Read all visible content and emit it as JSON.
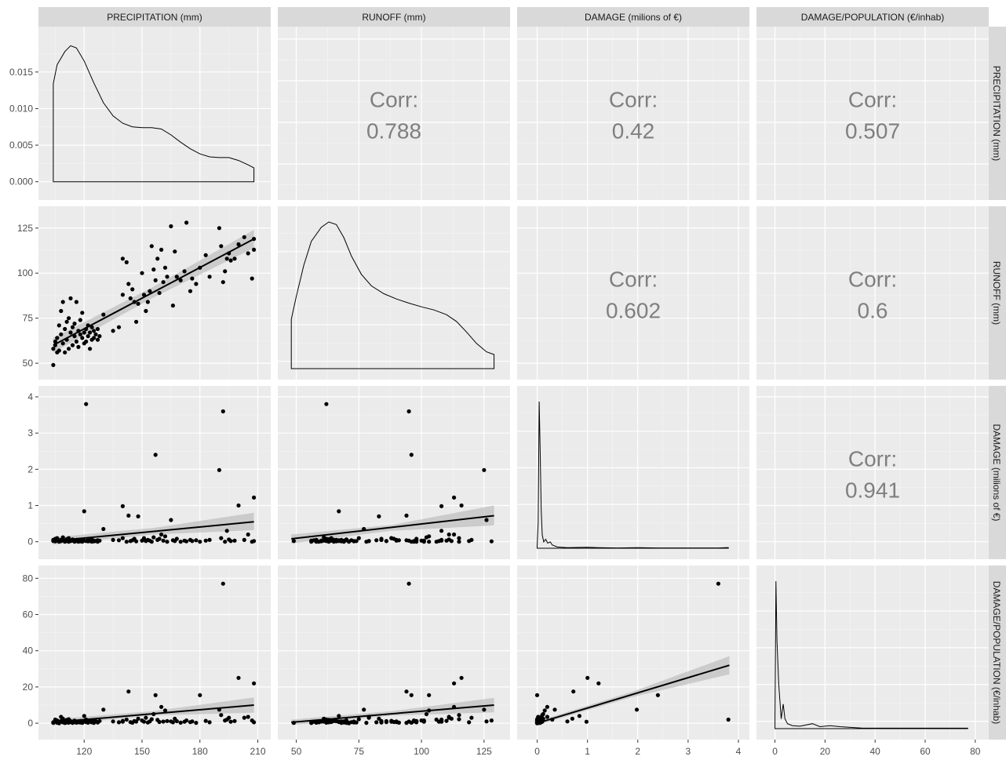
{
  "chart_data": {
    "type": "scatter",
    "title": "",
    "variables": [
      {
        "key": "precip",
        "label": "PRECIPITATION (mm)",
        "range": [
          102,
          211
        ],
        "ticks": [
          120,
          150,
          180,
          210
        ]
      },
      {
        "key": "runoff",
        "label": "RUNOFF (mm)",
        "range": [
          47,
          131
        ],
        "ticks": [
          50,
          75,
          100,
          125
        ]
      },
      {
        "key": "damage",
        "label": "DAMAGE (milions of €)",
        "range": [
          -0.18,
          4.0
        ],
        "ticks": [
          0,
          1,
          2,
          3,
          4
        ]
      },
      {
        "key": "dpop",
        "label": "DAMAGE/POPULATION (€/inhab)",
        "range": [
          -3,
          81
        ],
        "ticks": [
          0,
          20,
          40,
          60,
          80
        ]
      }
    ],
    "density_y": {
      "range": [
        -0.001,
        0.0197
      ],
      "ticks": [
        0.0,
        0.005,
        0.01,
        0.015
      ],
      "tick_labels": [
        "0.000",
        "0.005",
        "0.010",
        "0.015"
      ]
    },
    "correlations": [
      {
        "row": 0,
        "col": 1,
        "label": "Corr:",
        "value": "0.788"
      },
      {
        "row": 0,
        "col": 2,
        "label": "Corr:",
        "value": "0.42"
      },
      {
        "row": 0,
        "col": 3,
        "label": "Corr:",
        "value": "0.507"
      },
      {
        "row": 1,
        "col": 2,
        "label": "Corr:",
        "value": "0.602"
      },
      {
        "row": 1,
        "col": 3,
        "label": "Corr:",
        "value": "0.6"
      },
      {
        "row": 2,
        "col": 3,
        "label": "Corr:",
        "value": "0.941"
      }
    ],
    "densities": {
      "precip": [
        [
          104,
          0.0134
        ],
        [
          106,
          0.016
        ],
        [
          110,
          0.0178
        ],
        [
          113,
          0.0186
        ],
        [
          116,
          0.0183
        ],
        [
          120,
          0.0165
        ],
        [
          125,
          0.0135
        ],
        [
          130,
          0.0108
        ],
        [
          135,
          0.009
        ],
        [
          140,
          0.008
        ],
        [
          145,
          0.0075
        ],
        [
          150,
          0.0074
        ],
        [
          155,
          0.0074
        ],
        [
          160,
          0.0072
        ],
        [
          165,
          0.0064
        ],
        [
          170,
          0.0054
        ],
        [
          175,
          0.0045
        ],
        [
          180,
          0.0038
        ],
        [
          185,
          0.0034
        ],
        [
          190,
          0.0033
        ],
        [
          195,
          0.0033
        ],
        [
          200,
          0.0029
        ],
        [
          205,
          0.0023
        ],
        [
          208,
          0.0019
        ]
      ],
      "runoff": [
        [
          48,
          0.0094
        ],
        [
          50,
          0.0138
        ],
        [
          53,
          0.0197
        ],
        [
          56,
          0.0243
        ],
        [
          60,
          0.027
        ],
        [
          63,
          0.028
        ],
        [
          66,
          0.0275
        ],
        [
          69,
          0.025
        ],
        [
          72,
          0.0215
        ],
        [
          76,
          0.018
        ],
        [
          80,
          0.0158
        ],
        [
          85,
          0.0143
        ],
        [
          90,
          0.0133
        ],
        [
          95,
          0.0125
        ],
        [
          100,
          0.0118
        ],
        [
          105,
          0.0112
        ],
        [
          110,
          0.0103
        ],
        [
          114,
          0.009
        ],
        [
          118,
          0.007
        ],
        [
          122,
          0.0048
        ],
        [
          126,
          0.0032
        ],
        [
          129,
          0.0027
        ]
      ],
      "damage": [
        [
          0,
          0.05
        ],
        [
          0.02,
          0.8
        ],
        [
          0.04,
          4.6
        ],
        [
          0.06,
          3.0
        ],
        [
          0.08,
          1.2
        ],
        [
          0.1,
          0.42
        ],
        [
          0.13,
          0.2
        ],
        [
          0.17,
          0.28
        ],
        [
          0.21,
          0.16
        ],
        [
          0.26,
          0.2
        ],
        [
          0.3,
          0.1
        ],
        [
          0.4,
          0.04
        ],
        [
          0.6,
          0.02
        ],
        [
          1.0,
          0.03
        ],
        [
          1.2,
          0.02
        ],
        [
          1.6,
          0.01
        ],
        [
          2.0,
          0.02
        ],
        [
          2.4,
          0.01
        ],
        [
          3.0,
          0.01
        ],
        [
          3.6,
          0.01
        ],
        [
          3.8,
          0.02
        ]
      ],
      "dpop": [
        [
          0,
          0.02
        ],
        [
          0.4,
          0.3
        ],
        [
          0.8,
          0.18
        ],
        [
          1.5,
          0.09
        ],
        [
          2.5,
          0.02
        ],
        [
          3.3,
          0.05
        ],
        [
          4.0,
          0.02
        ],
        [
          5,
          0.01
        ],
        [
          7,
          0.006
        ],
        [
          10,
          0.005
        ],
        [
          15,
          0.01
        ],
        [
          18,
          0.004
        ],
        [
          22,
          0.006
        ],
        [
          26,
          0.004
        ],
        [
          35,
          0.001
        ],
        [
          50,
          0.001
        ],
        [
          77,
          0.001
        ]
      ]
    },
    "regressions": [
      {
        "row": 1,
        "col": 0,
        "line": [
          [
            104,
            60
          ],
          [
            208,
            119
          ]
        ],
        "band": [
          [
            104,
            56,
            64
          ],
          [
            156,
            86.5,
            92.5
          ],
          [
            208,
            114,
            124
          ]
        ]
      },
      {
        "row": 2,
        "col": 0,
        "line": [
          [
            104,
            0.02
          ],
          [
            208,
            0.55
          ]
        ],
        "band": [
          [
            104,
            -0.08,
            0.12
          ],
          [
            156,
            0.2,
            0.38
          ],
          [
            208,
            0.32,
            0.8
          ]
        ]
      },
      {
        "row": 2,
        "col": 1,
        "line": [
          [
            48,
            0.08
          ],
          [
            129,
            0.72
          ]
        ],
        "band": [
          [
            48,
            -0.05,
            0.2
          ],
          [
            88,
            0.3,
            0.46
          ],
          [
            129,
            0.45,
            1.0
          ]
        ]
      },
      {
        "row": 3,
        "col": 0,
        "line": [
          [
            104,
            0.5
          ],
          [
            208,
            10
          ]
        ],
        "band": [
          [
            104,
            -1.2,
            2.2
          ],
          [
            156,
            4.3,
            6.7
          ],
          [
            208,
            5.8,
            14.2
          ]
        ]
      },
      {
        "row": 3,
        "col": 1,
        "line": [
          [
            48,
            0.5
          ],
          [
            129,
            10
          ]
        ],
        "band": [
          [
            48,
            -1.0,
            2.0
          ],
          [
            88,
            4.2,
            6.6
          ],
          [
            129,
            6.0,
            14.0
          ]
        ]
      },
      {
        "row": 3,
        "col": 2,
        "line": [
          [
            0.0,
            0.0
          ],
          [
            3.82,
            32
          ]
        ],
        "band": [
          [
            0.0,
            -1.0,
            1.0
          ],
          [
            1.9,
            14.5,
            17.5
          ],
          [
            3.82,
            27,
            37
          ]
        ]
      }
    ],
    "points": [
      [
        104,
        49,
        0.02,
        0.2
      ],
      [
        104,
        58,
        0.05,
        0.5
      ],
      [
        105,
        60,
        0.01,
        1.0
      ],
      [
        105,
        62,
        0.08,
        2.0
      ],
      [
        106,
        56,
        0.03,
        0.3
      ],
      [
        106,
        64,
        0.1,
        1.5
      ],
      [
        107,
        71,
        0.0,
        0.0
      ],
      [
        107,
        57,
        0.04,
        0.8
      ],
      [
        108,
        79,
        0.02,
        3.5
      ],
      [
        108,
        66,
        0.05,
        1.2
      ],
      [
        109,
        84,
        0.06,
        0.5
      ],
      [
        109,
        61,
        0.12,
        2.5
      ],
      [
        110,
        56,
        0.0,
        0.1
      ],
      [
        110,
        69,
        0.03,
        1.0
      ],
      [
        111,
        73,
        0.02,
        0.4
      ],
      [
        111,
        63,
        0.07,
        1.8
      ],
      [
        112,
        75,
        0.1,
        2.2
      ],
      [
        112,
        58,
        0.0,
        0.3
      ],
      [
        113,
        67,
        0.04,
        0.7
      ],
      [
        113,
        86,
        0.02,
        1.1
      ],
      [
        114,
        60,
        0.03,
        0.9
      ],
      [
        114,
        70,
        0.06,
        0.2
      ],
      [
        115,
        65,
        0.0,
        1.4
      ],
      [
        115,
        72,
        0.04,
        0.6
      ],
      [
        116,
        62,
        0.02,
        0.3
      ],
      [
        116,
        84,
        0.05,
        0.8
      ],
      [
        117,
        68,
        0.03,
        1.0
      ],
      [
        117,
        59,
        0.0,
        0.5
      ],
      [
        118,
        66,
        0.01,
        1.2
      ],
      [
        118,
        74,
        0.02,
        0.4
      ],
      [
        119,
        64,
        0.04,
        0.7
      ],
      [
        119,
        78,
        0.0,
        0.2
      ],
      [
        120,
        67,
        0.84,
        4.0
      ],
      [
        120,
        61,
        0.03,
        0.9
      ],
      [
        121,
        69,
        0.02,
        0.6
      ],
      [
        121,
        62,
        3.8,
        2.0
      ],
      [
        122,
        65,
        0.05,
        1.3
      ],
      [
        122,
        71,
        0.01,
        0.3
      ],
      [
        123,
        58,
        0.04,
        0.8
      ],
      [
        123,
        67,
        0.02,
        1.0
      ],
      [
        124,
        63,
        0.0,
        0.5
      ],
      [
        124,
        70,
        0.06,
        1.6
      ],
      [
        125,
        68,
        0.01,
        0.2
      ],
      [
        125,
        64,
        0.03,
        0.9
      ],
      [
        126,
        66,
        0.02,
        1.1
      ],
      [
        127,
        63,
        0.04,
        0.7
      ],
      [
        127,
        69,
        0.0,
        0.4
      ],
      [
        128,
        65,
        0.03,
        1.2
      ],
      [
        130,
        77,
        0.35,
        7.5
      ],
      [
        135,
        68,
        0.05,
        1.0
      ],
      [
        138,
        70,
        0.04,
        0.5
      ],
      [
        140,
        108,
        0.98,
        0.8
      ],
      [
        140,
        88,
        0.1,
        1.3
      ],
      [
        142,
        106,
        0.0,
        2.0
      ],
      [
        143,
        94,
        0.72,
        17.5
      ],
      [
        144,
        86,
        0.02,
        0.6
      ],
      [
        145,
        91,
        0.04,
        0.3
      ],
      [
        146,
        84,
        0.08,
        1.2
      ],
      [
        147,
        73,
        0.01,
        0.9
      ],
      [
        148,
        83,
        0.7,
        2.5
      ],
      [
        150,
        100,
        0.03,
        1.5
      ],
      [
        151,
        88,
        0.1,
        0.8
      ],
      [
        152,
        79,
        0.02,
        3.0
      ],
      [
        153,
        84,
        0.05,
        0.4
      ],
      [
        154,
        90,
        0.03,
        1.0
      ],
      [
        155,
        115,
        0.0,
        2.2
      ],
      [
        156,
        102,
        0.12,
        5.0
      ],
      [
        157,
        96,
        2.4,
        15.5
      ],
      [
        158,
        108,
        0.05,
        1.8
      ],
      [
        159,
        89,
        0.08,
        0.7
      ],
      [
        160,
        113,
        0.2,
        9.0
      ],
      [
        161,
        95,
        0.03,
        0.9
      ],
      [
        162,
        103,
        0.15,
        7.0
      ],
      [
        163,
        98,
        0.0,
        1.2
      ],
      [
        165,
        126,
        0.6,
        1.0
      ],
      [
        166,
        82,
        0.04,
        0.5
      ],
      [
        167,
        112,
        0.02,
        2.5
      ],
      [
        168,
        98,
        0.08,
        1.1
      ],
      [
        170,
        96,
        0.0,
        0.3
      ],
      [
        172,
        101,
        0.03,
        0.8
      ],
      [
        173,
        128,
        0.01,
        1.5
      ],
      [
        175,
        90,
        0.05,
        0.6
      ],
      [
        176,
        97,
        0.02,
        1.0
      ],
      [
        178,
        94,
        0.04,
        0.2
      ],
      [
        180,
        103,
        0.0,
        15.5
      ],
      [
        183,
        110,
        0.03,
        1.3
      ],
      [
        185,
        98,
        0.05,
        0.5
      ],
      [
        190,
        125,
        1.98,
        7.5
      ],
      [
        191,
        115,
        0.1,
        4.5
      ],
      [
        192,
        95,
        3.6,
        77.0
      ],
      [
        193,
        101,
        0.0,
        1.5
      ],
      [
        194,
        108,
        0.3,
        2.0
      ],
      [
        195,
        111,
        0.06,
        3.0
      ],
      [
        196,
        107,
        0.02,
        0.8
      ],
      [
        198,
        108,
        0.03,
        1.2
      ],
      [
        200,
        116,
        1.0,
        25.0
      ],
      [
        203,
        120,
        0.05,
        3.0
      ],
      [
        205,
        111,
        0.2,
        3.5
      ],
      [
        207,
        97,
        0.0,
        1.5
      ],
      [
        208,
        113,
        1.22,
        22.0
      ],
      [
        208,
        119,
        0.02,
        0.5
      ]
    ]
  }
}
